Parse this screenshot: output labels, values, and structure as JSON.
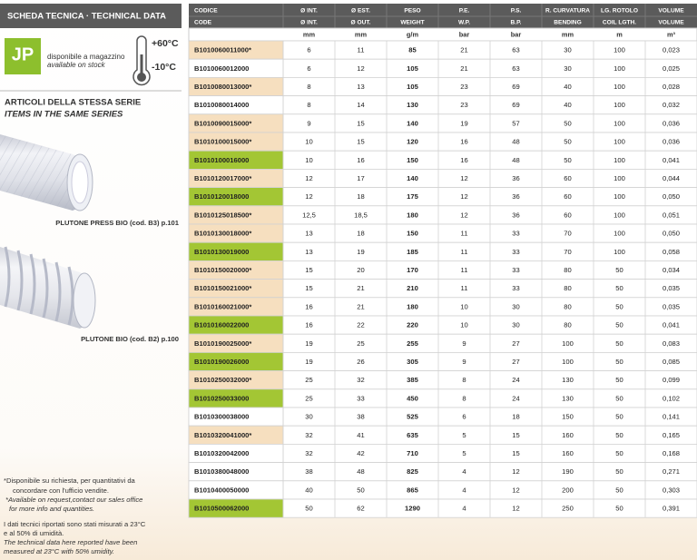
{
  "header": {
    "title": "SCHEDA TECNICA · TECHNICAL DATA"
  },
  "badge": {
    "logo": "JP",
    "stock_it": "disponibile a magazzino",
    "stock_en": "available on stock",
    "temp_max": "+60°C",
    "temp_min": "-10°C"
  },
  "series_section": {
    "title_it": "ARTICOLI DELLA STESSA SERIE",
    "title_en": "ITEMS IN THE SAME SERIES",
    "items": [
      {
        "caption": "PLUTONE PRESS BIO (cod. B3) p.101"
      },
      {
        "caption": "PLUTONE BIO (cod. B2) p.100"
      }
    ]
  },
  "notes": [
    "*Disponibile su richiesta, per quantitativi da",
    "concordare con l'ufficio vendite.",
    "*Available on request,contact our sales office",
    "for more info and quantities.",
    "I dati tecnici riportati sono stati misurati a 23°C",
    "e al 50% di umidità.",
    "The technical data here reported have been",
    "measured at 23°C with 50% umidity."
  ],
  "table": {
    "header_it": [
      "CODICE",
      "Ø INT.",
      "Ø EST.",
      "PESO",
      "P.E.",
      "P.S.",
      "R. CURVATURA",
      "LG. ROTOLO",
      "VOLUME"
    ],
    "header_en": [
      "CODE",
      "Ø INT.",
      "Ø OUT.",
      "WEIGHT",
      "W.P.",
      "B.P.",
      "BENDING",
      "COIL LGTH.",
      "VOLUME"
    ],
    "units": [
      "mm",
      "mm",
      "g/m",
      "bar",
      "bar",
      "mm",
      "m",
      "m³"
    ],
    "rows": [
      [
        "B1010060011000*",
        "6",
        "11",
        "85",
        "21",
        "63",
        "30",
        "100",
        "0,023"
      ],
      [
        "B1010060012000",
        "6",
        "12",
        "105",
        "21",
        "63",
        "30",
        "100",
        "0,025"
      ],
      [
        "B1010080013000*",
        "8",
        "13",
        "105",
        "23",
        "69",
        "40",
        "100",
        "0,028"
      ],
      [
        "B1010080014000",
        "8",
        "14",
        "130",
        "23",
        "69",
        "40",
        "100",
        "0,032"
      ],
      [
        "B1010090015000*",
        "9",
        "15",
        "140",
        "19",
        "57",
        "50",
        "100",
        "0,036"
      ],
      [
        "B1010100015000*",
        "10",
        "15",
        "120",
        "16",
        "48",
        "50",
        "100",
        "0,036"
      ],
      [
        "B1010100016000",
        "10",
        "16",
        "150",
        "16",
        "48",
        "50",
        "100",
        "0,041"
      ],
      [
        "B1010120017000*",
        "12",
        "17",
        "140",
        "12",
        "36",
        "60",
        "100",
        "0,044"
      ],
      [
        "B1010120018000",
        "12",
        "18",
        "175",
        "12",
        "36",
        "60",
        "100",
        "0,050"
      ],
      [
        "B1010125018500*",
        "12,5",
        "18,5",
        "180",
        "12",
        "36",
        "60",
        "100",
        "0,051"
      ],
      [
        "B1010130018000*",
        "13",
        "18",
        "150",
        "11",
        "33",
        "70",
        "100",
        "0,050"
      ],
      [
        "B1010130019000",
        "13",
        "19",
        "185",
        "11",
        "33",
        "70",
        "100",
        "0,058"
      ],
      [
        "B1010150020000*",
        "15",
        "20",
        "170",
        "11",
        "33",
        "80",
        "50",
        "0,034"
      ],
      [
        "B1010150021000*",
        "15",
        "21",
        "210",
        "11",
        "33",
        "80",
        "50",
        "0,035"
      ],
      [
        "B1010160021000*",
        "16",
        "21",
        "180",
        "10",
        "30",
        "80",
        "50",
        "0,035"
      ],
      [
        "B1010160022000",
        "16",
        "22",
        "220",
        "10",
        "30",
        "80",
        "50",
        "0,041"
      ],
      [
        "B1010190025000*",
        "19",
        "25",
        "255",
        "9",
        "27",
        "100",
        "50",
        "0,083"
      ],
      [
        "B1010190026000",
        "19",
        "26",
        "305",
        "9",
        "27",
        "100",
        "50",
        "0,085"
      ],
      [
        "B1010250032000*",
        "25",
        "32",
        "385",
        "8",
        "24",
        "130",
        "50",
        "0,099"
      ],
      [
        "B1010250033000",
        "25",
        "33",
        "450",
        "8",
        "24",
        "130",
        "50",
        "0,102"
      ],
      [
        "B1010300038000",
        "30",
        "38",
        "525",
        "6",
        "18",
        "150",
        "50",
        "0,141"
      ],
      [
        "B1010320041000*",
        "32",
        "41",
        "635",
        "5",
        "15",
        "160",
        "50",
        "0,165"
      ],
      [
        "B1010320042000",
        "32",
        "42",
        "710",
        "5",
        "15",
        "160",
        "50",
        "0,168"
      ],
      [
        "B1010380048000",
        "38",
        "48",
        "825",
        "4",
        "12",
        "190",
        "50",
        "0,271"
      ],
      [
        "B1010400050000",
        "40",
        "50",
        "865",
        "4",
        "12",
        "200",
        "50",
        "0,303"
      ],
      [
        "B1010500062000",
        "50",
        "62",
        "1290",
        "4",
        "12",
        "250",
        "50",
        "0,391"
      ]
    ],
    "code_fill": [
      "#f6dfbf",
      "#ffffff",
      "#f6dfbf",
      "#ffffff",
      "#f6dfbf",
      "#f6dfbf",
      "#a3c634",
      "#f6dfbf",
      "#a3c634",
      "#f6dfbf",
      "#f6dfbf",
      "#a3c634",
      "#f6dfbf",
      "#f6dfbf",
      "#f6dfbf",
      "#a3c634",
      "#f6dfbf",
      "#a3c634",
      "#f6dfbf",
      "#a3c634",
      "#ffffff",
      "#f6dfbf",
      "#ffffff",
      "#ffffff",
      "#ffffff",
      "#a3c634"
    ]
  }
}
